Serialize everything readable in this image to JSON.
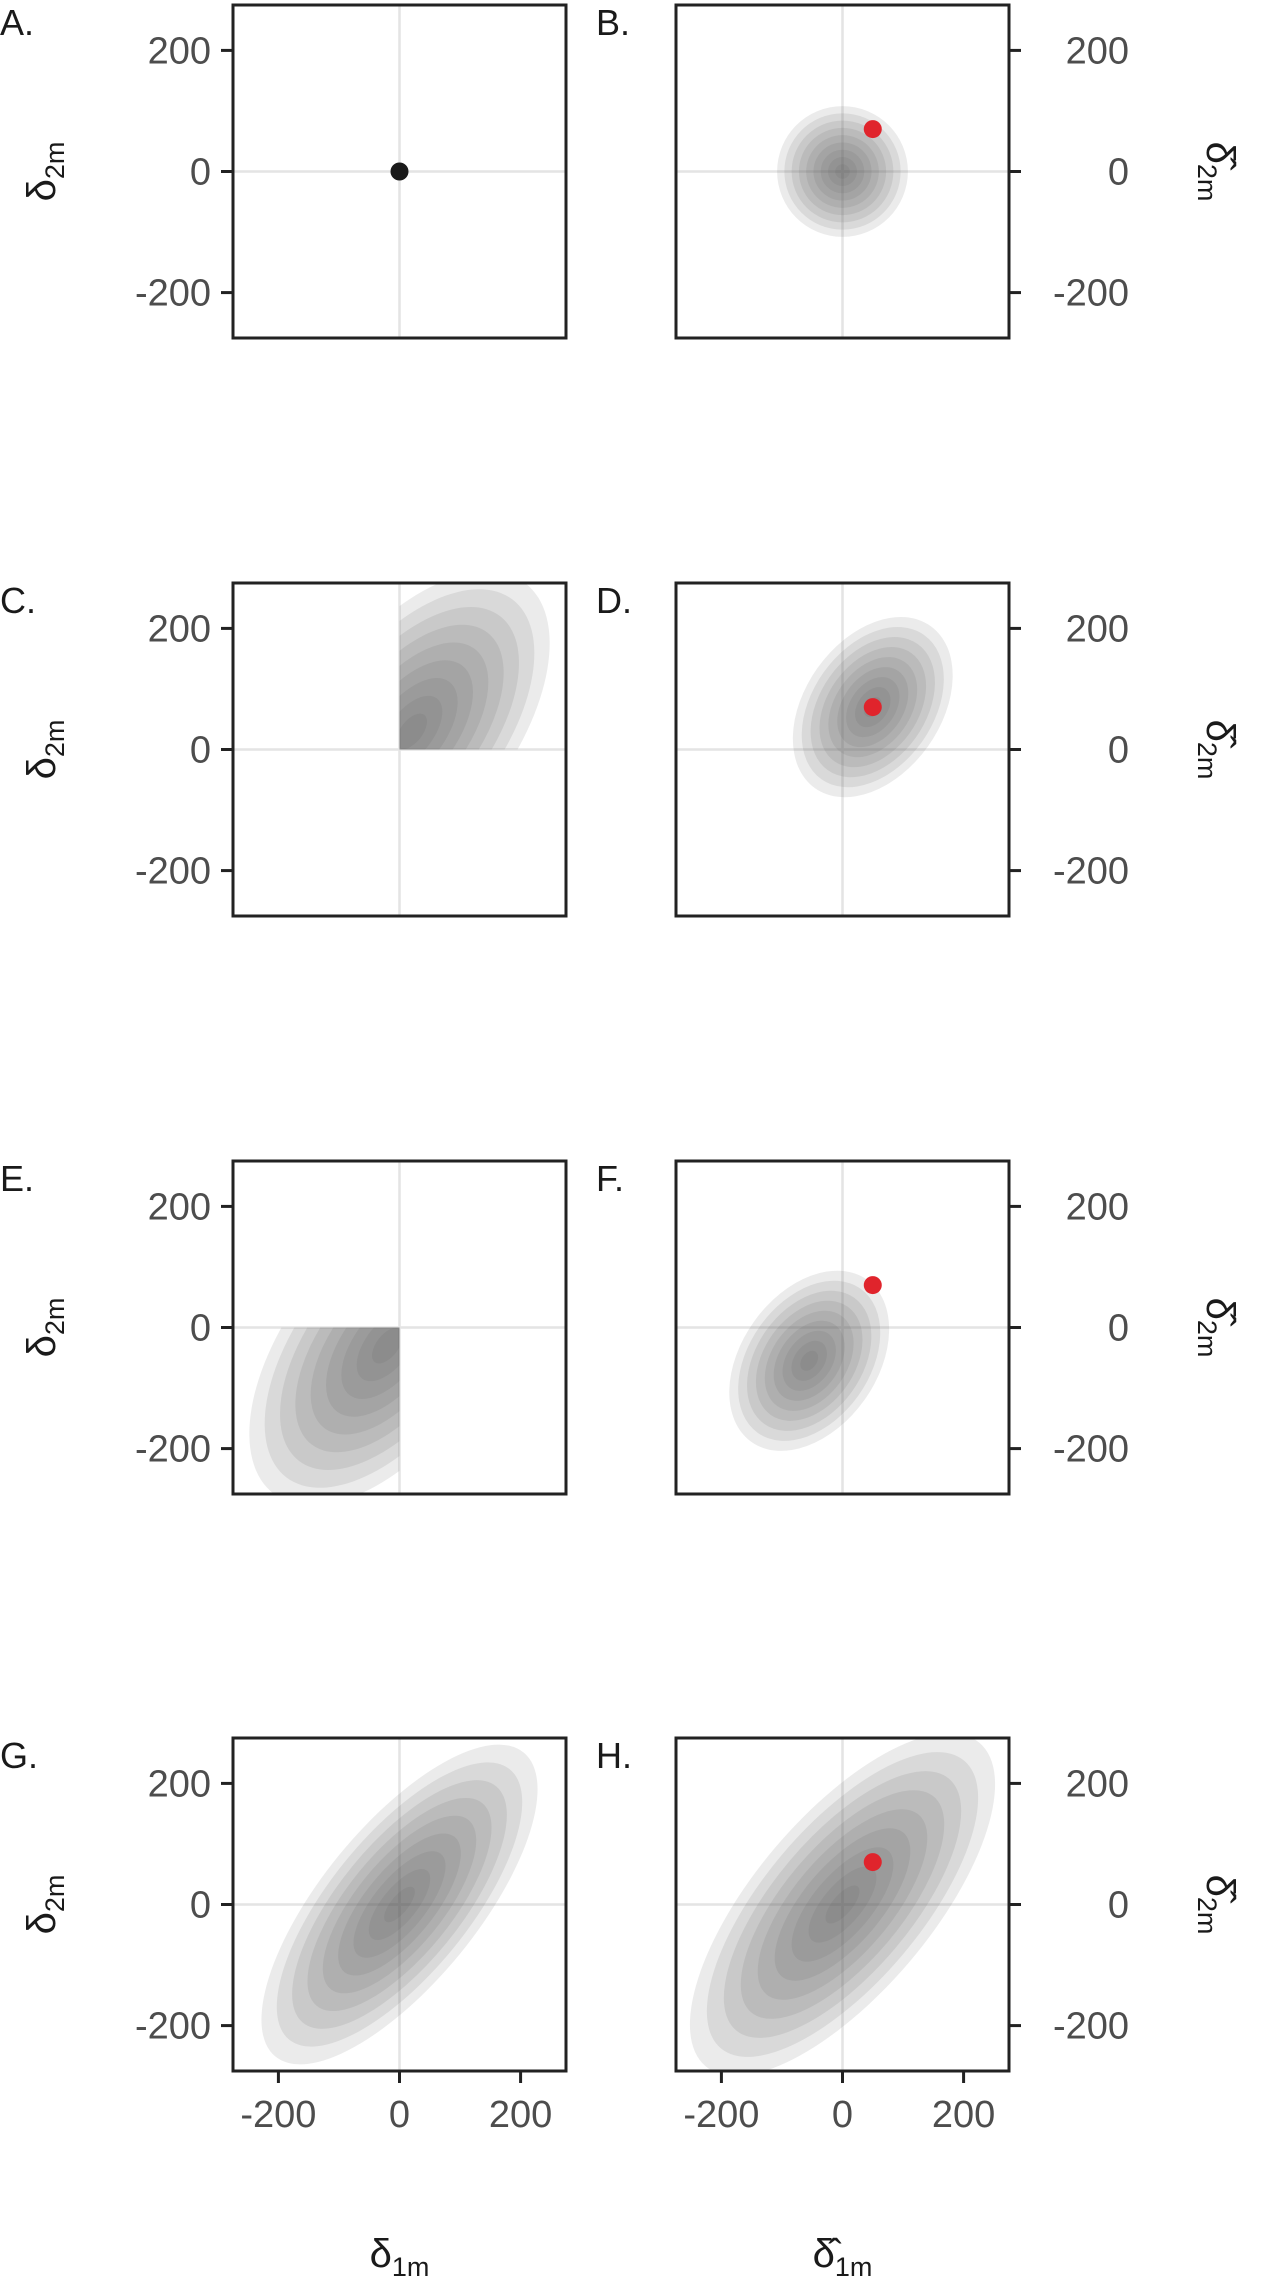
{
  "chart_data": [
    {
      "type": "contour",
      "panel_label": "A.",
      "xlim": [
        -275,
        275
      ],
      "ylim": [
        -275,
        275
      ],
      "y_ticks": [
        -200,
        0,
        200
      ],
      "ylabel": "δ2m",
      "density": null,
      "points": [
        {
          "x": 0,
          "y": 0,
          "color": "#1a1a1a"
        }
      ]
    },
    {
      "type": "contour",
      "panel_label": "B.",
      "xlim": [
        -275,
        275
      ],
      "ylim": [
        -275,
        275
      ],
      "y_ticks": [
        -200,
        0,
        200
      ],
      "ylabel": "δ̂2m",
      "density": {
        "mean": [
          0,
          0
        ],
        "sd": [
          45,
          45
        ],
        "rho": 0.0,
        "truncate": "none"
      },
      "points": [
        {
          "x": 50,
          "y": 70,
          "color": "#e0242c"
        }
      ]
    },
    {
      "type": "contour",
      "panel_label": "C.",
      "xlim": [
        -275,
        275
      ],
      "ylim": [
        -275,
        275
      ],
      "y_ticks": [
        -200,
        0,
        200
      ],
      "ylabel": "δ2m",
      "density": {
        "mean": [
          20,
          30
        ],
        "sd": [
          95,
          110
        ],
        "rho": 0.55,
        "truncate": "positive"
      },
      "points": []
    },
    {
      "type": "contour",
      "panel_label": "D.",
      "xlim": [
        -275,
        275
      ],
      "ylim": [
        -275,
        275
      ],
      "y_ticks": [
        -200,
        0,
        200
      ],
      "ylabel": "δ̂2m",
      "density": {
        "mean": [
          50,
          70
        ],
        "sd": [
          55,
          62
        ],
        "rho": 0.35,
        "truncate": "none"
      },
      "points": [
        {
          "x": 50,
          "y": 70,
          "color": "#e0242c"
        }
      ]
    },
    {
      "type": "contour",
      "panel_label": "E.",
      "xlim": [
        -275,
        275
      ],
      "ylim": [
        -275,
        275
      ],
      "y_ticks": [
        -200,
        0,
        200
      ],
      "ylabel": "δ2m",
      "density": {
        "mean": [
          -20,
          -30
        ],
        "sd": [
          95,
          110
        ],
        "rho": 0.55,
        "truncate": "negative"
      },
      "points": []
    },
    {
      "type": "contour",
      "panel_label": "F.",
      "xlim": [
        -275,
        275
      ],
      "ylim": [
        -275,
        275
      ],
      "y_ticks": [
        -200,
        0,
        200
      ],
      "ylabel": "δ̂2m",
      "density": {
        "mean": [
          -55,
          -55
        ],
        "sd": [
          55,
          62
        ],
        "rho": 0.35,
        "truncate": "none"
      },
      "points": [
        {
          "x": 50,
          "y": 70,
          "color": "#e0242c"
        }
      ]
    },
    {
      "type": "contour",
      "panel_label": "G.",
      "xlim": [
        -275,
        275
      ],
      "ylim": [
        -275,
        275
      ],
      "x_ticks": [
        -200,
        0,
        200
      ],
      "y_ticks": [
        -200,
        0,
        200
      ],
      "xlabel": "δ1m",
      "ylabel": "δ2m",
      "density": {
        "mean": [
          0,
          0
        ],
        "sd": [
          95,
          110
        ],
        "rho": 0.72,
        "truncate": "none"
      },
      "points": []
    },
    {
      "type": "contour",
      "panel_label": "H.",
      "xlim": [
        -275,
        275
      ],
      "ylim": [
        -275,
        275
      ],
      "x_ticks": [
        -200,
        0,
        200
      ],
      "y_ticks": [
        -200,
        0,
        200
      ],
      "xlabel": "δ̂1m",
      "ylabel": "δ̂2m",
      "density": {
        "mean": [
          0,
          0
        ],
        "sd": [
          105,
          118
        ],
        "rho": 0.7,
        "truncate": "none"
      },
      "points": [
        {
          "x": 50,
          "y": 70,
          "color": "#e0242c"
        }
      ]
    }
  ]
}
